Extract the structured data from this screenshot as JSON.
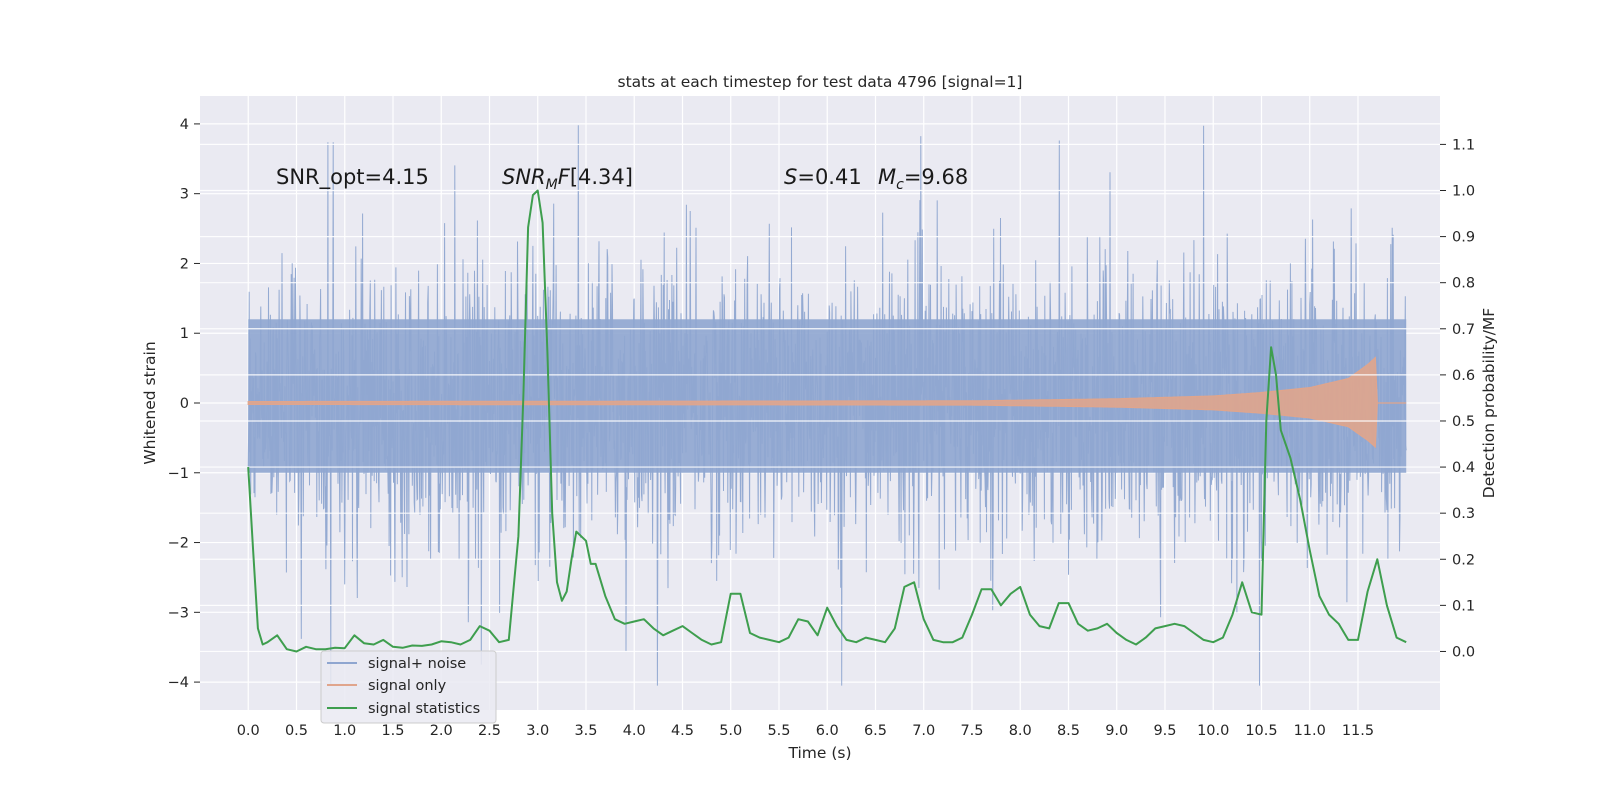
{
  "chart_data": {
    "type": "line",
    "title": "stats at each timestep for test data 4796 [signal=1]",
    "xlabel": "Time (s)",
    "ylabel": "Whitened strain",
    "y2label": "Detection probability/MF",
    "xlim": [
      -0.5,
      12.35
    ],
    "ylim": [
      -4.4,
      4.4
    ],
    "y2lim": [
      -0.127,
      1.205
    ],
    "xticks": [
      0.0,
      0.5,
      1.0,
      1.5,
      2.0,
      2.5,
      3.0,
      3.5,
      4.0,
      4.5,
      5.0,
      5.5,
      6.0,
      6.5,
      7.0,
      7.5,
      8.0,
      8.5,
      9.0,
      9.5,
      10.0,
      10.5,
      11.0,
      11.5
    ],
    "xtick_labels": [
      "0.0",
      "0.5",
      "1.0",
      "1.5",
      "2.0",
      "2.5",
      "3.0",
      "3.5",
      "4.0",
      "4.5",
      "5.0",
      "5.5",
      "6.0",
      "6.5",
      "7.0",
      "7.5",
      "8.0",
      "8.5",
      "9.0",
      "9.5",
      "10.0",
      "10.5",
      "11.0",
      "11.5"
    ],
    "yticks": [
      -4,
      -3,
      -2,
      -1,
      0,
      1,
      2,
      3,
      4
    ],
    "ytick_labels": [
      "−4",
      "−3",
      "−2",
      "−1",
      "0",
      "1",
      "2",
      "3",
      "4"
    ],
    "y2ticks": [
      0.0,
      0.1,
      0.2,
      0.3,
      0.4,
      0.5,
      0.6,
      0.7,
      0.8,
      0.9,
      1.0,
      1.1
    ],
    "y2tick_labels": [
      "0.0",
      "0.1",
      "0.2",
      "0.3",
      "0.4",
      "0.5",
      "0.6",
      "0.7",
      "0.8",
      "0.9",
      "1.0",
      "1.1"
    ],
    "grid": true,
    "legend_position": "lower-left",
    "annotations": {
      "snr_opt": "SNR_opt=4.15",
      "snr_mf": "[4.34]",
      "s_value": "=0.41",
      "mc_value": "=9.68"
    },
    "series": [
      {
        "name": "signal+ noise",
        "color": "#8fa6d0",
        "kind": "noise-band",
        "x_range": [
          0.0,
          12.0
        ],
        "typical_envelope": [
          -2.0,
          2.4
        ],
        "approx_extremes": {
          "min": -4.05,
          "max": 3.98
        }
      },
      {
        "name": "signal only",
        "color": "#e0a58c",
        "kind": "chirp",
        "x_range": [
          0.0,
          12.0
        ],
        "amplitude_points": [
          [
            0.0,
            0.02
          ],
          [
            7.5,
            0.03
          ],
          [
            9.0,
            0.06
          ],
          [
            10.0,
            0.1
          ],
          [
            10.5,
            0.15
          ],
          [
            11.0,
            0.22
          ],
          [
            11.4,
            0.35
          ],
          [
            11.6,
            0.55
          ],
          [
            11.68,
            0.65
          ],
          [
            11.7,
            0.0
          ],
          [
            12.0,
            0.0
          ]
        ]
      },
      {
        "name": "signal statistics",
        "color": "#3e9e4e",
        "axis": "right",
        "x": [
          0.0,
          0.05,
          0.1,
          0.15,
          0.2,
          0.3,
          0.4,
          0.5,
          0.6,
          0.7,
          0.8,
          0.9,
          1.0,
          1.1,
          1.2,
          1.3,
          1.4,
          1.5,
          1.6,
          1.7,
          1.8,
          1.9,
          2.0,
          2.1,
          2.2,
          2.3,
          2.4,
          2.5,
          2.6,
          2.7,
          2.8,
          2.85,
          2.9,
          2.95,
          3.0,
          3.05,
          3.1,
          3.15,
          3.2,
          3.25,
          3.3,
          3.35,
          3.4,
          3.5,
          3.55,
          3.6,
          3.7,
          3.8,
          3.9,
          4.0,
          4.1,
          4.2,
          4.3,
          4.4,
          4.5,
          4.6,
          4.7,
          4.8,
          4.9,
          5.0,
          5.1,
          5.2,
          5.3,
          5.4,
          5.5,
          5.6,
          5.7,
          5.8,
          5.9,
          6.0,
          6.1,
          6.2,
          6.3,
          6.4,
          6.5,
          6.6,
          6.7,
          6.8,
          6.9,
          7.0,
          7.1,
          7.2,
          7.3,
          7.4,
          7.5,
          7.6,
          7.7,
          7.8,
          7.9,
          8.0,
          8.1,
          8.2,
          8.3,
          8.4,
          8.5,
          8.6,
          8.7,
          8.8,
          8.9,
          9.0,
          9.1,
          9.2,
          9.3,
          9.4,
          9.5,
          9.6,
          9.7,
          9.8,
          9.9,
          10.0,
          10.1,
          10.2,
          10.3,
          10.4,
          10.5,
          10.55,
          10.6,
          10.65,
          10.7,
          10.75,
          10.8,
          10.9,
          11.0,
          11.1,
          11.2,
          11.3,
          11.4,
          11.5,
          11.6,
          11.7,
          11.8,
          11.9,
          12.0
        ],
        "y": [
          0.4,
          0.22,
          0.05,
          0.015,
          0.02,
          0.035,
          0.005,
          0.0,
          0.01,
          0.005,
          0.005,
          0.008,
          0.007,
          0.035,
          0.018,
          0.015,
          0.025,
          0.01,
          0.008,
          0.013,
          0.012,
          0.015,
          0.022,
          0.02,
          0.015,
          0.025,
          0.055,
          0.045,
          0.02,
          0.025,
          0.25,
          0.55,
          0.92,
          0.99,
          1.0,
          0.93,
          0.65,
          0.3,
          0.15,
          0.11,
          0.13,
          0.2,
          0.26,
          0.24,
          0.19,
          0.19,
          0.12,
          0.07,
          0.06,
          0.065,
          0.07,
          0.05,
          0.035,
          0.045,
          0.055,
          0.04,
          0.025,
          0.015,
          0.02,
          0.125,
          0.125,
          0.04,
          0.03,
          0.025,
          0.02,
          0.03,
          0.07,
          0.065,
          0.035,
          0.095,
          0.055,
          0.025,
          0.02,
          0.03,
          0.025,
          0.02,
          0.05,
          0.14,
          0.15,
          0.07,
          0.025,
          0.02,
          0.02,
          0.03,
          0.08,
          0.135,
          0.135,
          0.1,
          0.125,
          0.14,
          0.08,
          0.055,
          0.05,
          0.105,
          0.105,
          0.06,
          0.045,
          0.05,
          0.06,
          0.04,
          0.025,
          0.015,
          0.03,
          0.05,
          0.055,
          0.06,
          0.055,
          0.04,
          0.025,
          0.02,
          0.03,
          0.08,
          0.15,
          0.085,
          0.08,
          0.5,
          0.66,
          0.6,
          0.48,
          0.45,
          0.42,
          0.33,
          0.22,
          0.12,
          0.08,
          0.06,
          0.025,
          0.025,
          0.13,
          0.2,
          0.1,
          0.03,
          0.02
        ]
      }
    ]
  }
}
